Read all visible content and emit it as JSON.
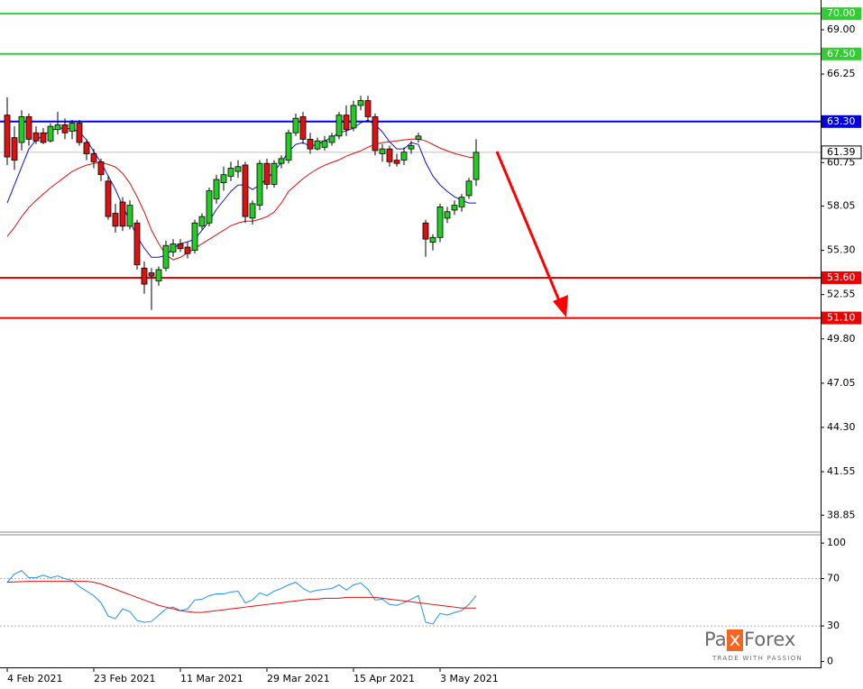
{
  "chart_data": [
    {
      "type": "candlestick",
      "categories": [
        "4 Feb 2021",
        null,
        null,
        null,
        null,
        null,
        null,
        null,
        null,
        null,
        null,
        null,
        "23 Feb 2021",
        null,
        null,
        null,
        null,
        null,
        null,
        null,
        null,
        null,
        null,
        null,
        "11 Mar 2021",
        null,
        null,
        null,
        null,
        null,
        null,
        null,
        null,
        null,
        null,
        null,
        "29 Mar 2021",
        null,
        null,
        null,
        null,
        null,
        null,
        null,
        null,
        null,
        null,
        null,
        "15 Apr 2021",
        null,
        null,
        null,
        null,
        null,
        null,
        null,
        null,
        null,
        null,
        null,
        "3 May 2021",
        null,
        null,
        null,
        null,
        null
      ],
      "open": [
        63.7,
        62.3,
        62.0,
        63.6,
        62.6,
        62.6,
        62.1,
        62.8,
        63.1,
        62.7,
        63.2,
        62.0,
        61.3,
        60.8,
        59.6,
        57.6,
        58.3,
        56.8,
        57.0,
        54.2,
        53.9,
        53.4,
        54.2,
        55.2,
        55.7,
        55.5,
        55.3,
        56.8,
        57.0,
        58.5,
        59.5,
        59.9,
        60.2,
        60.6,
        57.3,
        58.1,
        60.7,
        59.4,
        60.7,
        60.9,
        62.6,
        63.6,
        62.2,
        61.6,
        61.7,
        62.0,
        62.4,
        63.7,
        62.9,
        64.3,
        64.6,
        63.6,
        61.3,
        61.6,
        60.9,
        60.9,
        61.6,
        62.2,
        57.0,
        55.8,
        56.1,
        57.3,
        57.8,
        58.0,
        58.7,
        59.7
      ],
      "high": [
        64.8,
        63.0,
        64.0,
        63.8,
        63.0,
        62.9,
        63.2,
        63.9,
        63.5,
        63.4,
        63.4,
        62.2,
        61.6,
        61.0,
        59.9,
        58.2,
        58.6,
        58.4,
        57.2,
        54.6,
        54.2,
        54.3,
        55.9,
        56.0,
        56.0,
        55.8,
        57.2,
        57.6,
        59.2,
        60.0,
        60.5,
        60.8,
        60.9,
        60.8,
        58.4,
        60.9,
        61.0,
        60.9,
        61.2,
        62.8,
        63.8,
        63.9,
        62.6,
        62.3,
        62.4,
        62.6,
        63.9,
        64.3,
        64.6,
        64.9,
        64.9,
        63.8,
        61.9,
        61.8,
        61.3,
        61.7,
        62.1,
        62.6,
        57.2,
        56.3,
        58.2,
        58.0,
        58.4,
        58.8,
        59.8,
        62.2
      ],
      "low": [
        60.6,
        60.3,
        61.5,
        61.8,
        61.9,
        61.9,
        62.0,
        62.5,
        62.2,
        62.2,
        61.8,
        60.9,
        60.4,
        59.6,
        57.2,
        56.4,
        56.5,
        56.6,
        54.1,
        52.6,
        51.6,
        53.1,
        54.0,
        54.9,
        55.2,
        54.8,
        55.1,
        56.6,
        56.8,
        58.2,
        59.0,
        59.6,
        59.8,
        57.0,
        56.9,
        57.8,
        59.1,
        59.2,
        60.4,
        60.7,
        62.4,
        61.9,
        61.3,
        61.5,
        61.5,
        61.8,
        62.2,
        62.4,
        62.7,
        64.0,
        63.3,
        61.2,
        60.8,
        60.5,
        60.5,
        60.6,
        61.3,
        62.0,
        54.9,
        55.3,
        55.8,
        57.0,
        57.5,
        57.7,
        58.5,
        59.3
      ],
      "close": [
        61.1,
        60.9,
        63.6,
        62.2,
        62.1,
        62.0,
        63.0,
        63.1,
        62.6,
        63.2,
        62.0,
        61.3,
        60.8,
        60.0,
        57.4,
        56.8,
        56.8,
        58.1,
        54.4,
        53.2,
        53.7,
        54.1,
        55.6,
        55.7,
        55.4,
        55.1,
        57.0,
        57.4,
        59.0,
        59.7,
        60.0,
        60.4,
        60.5,
        57.4,
        58.2,
        60.7,
        59.4,
        60.7,
        61.0,
        62.6,
        63.5,
        62.2,
        61.6,
        62.1,
        62.1,
        62.4,
        63.7,
        62.8,
        64.3,
        64.6,
        63.6,
        61.5,
        61.6,
        60.8,
        60.7,
        61.4,
        61.8,
        62.4,
        56.0,
        56.1,
        58.0,
        57.7,
        58.1,
        58.6,
        59.6,
        61.39
      ],
      "up_color": "#22cc22",
      "down_color": "#dd1111",
      "lines": [
        {
          "color": "#1111cc",
          "values": [
            58.24,
            59.36,
            60.48,
            61.6,
            62.16,
            62.44,
            62.72,
            62.89,
            62.89,
            62.83,
            62.66,
            62.16,
            61.43,
            60.76,
            59.92,
            59.08,
            58.07,
            57.11,
            56.16,
            55.43,
            54.87,
            54.87,
            54.99,
            55.43,
            55.71,
            55.83,
            55.99,
            56.55,
            57.11,
            57.84,
            58.4,
            58.96,
            59.36,
            59.36,
            59.08,
            59.36,
            59.75,
            60.2,
            60.76,
            61.43,
            61.88,
            61.99,
            61.76,
            61.88,
            62.1,
            62.32,
            62.61,
            62.72,
            62.89,
            63.22,
            63.39,
            63.11,
            62.66,
            62.04,
            61.6,
            61.6,
            61.99,
            61.88,
            60.76,
            59.92,
            59.36,
            58.96,
            58.63,
            58.4,
            58.24,
            58.24
          ]
        },
        {
          "color": "#dd1111",
          "values": [
            56.16,
            56.72,
            57.39,
            57.96,
            58.4,
            58.8,
            59.19,
            59.52,
            59.86,
            60.2,
            60.42,
            60.59,
            60.7,
            60.76,
            60.64,
            60.48,
            60.08,
            59.47,
            58.63,
            57.68,
            56.55,
            55.71,
            55.04,
            54.71,
            54.87,
            55.15,
            55.43,
            55.71,
            55.99,
            56.27,
            56.55,
            56.83,
            57.0,
            57.11,
            57.11,
            57.23,
            57.39,
            57.68,
            58.24,
            58.96,
            59.36,
            59.75,
            60.08,
            60.36,
            60.59,
            60.76,
            60.92,
            61.15,
            61.32,
            61.48,
            61.71,
            61.88,
            61.99,
            62.04,
            62.1,
            62.16,
            62.21,
            62.21,
            62.1,
            61.88,
            61.65,
            61.48,
            61.32,
            61.2,
            61.09,
            61.04
          ]
        }
      ],
      "ylim": [
        37.8,
        70.85
      ],
      "yticks": [
        {
          "value": 69.0,
          "label": "69.00"
        },
        {
          "value": 66.25,
          "label": "66.25"
        },
        {
          "value": 60.75,
          "label": "60.75"
        },
        {
          "value": 58.05,
          "label": "58.05"
        },
        {
          "value": 55.3,
          "label": "55.30"
        },
        {
          "value": 52.55,
          "label": "52.55"
        },
        {
          "value": 49.8,
          "label": "49.80"
        },
        {
          "value": 47.05,
          "label": "47.05"
        },
        {
          "value": 44.3,
          "label": "44.30"
        },
        {
          "value": 41.55,
          "label": "41.55"
        },
        {
          "value": 38.85,
          "label": "38.85"
        }
      ],
      "levels": [
        {
          "value": 70,
          "label": "70.00",
          "color": "#33cc33"
        },
        {
          "value": 67.5,
          "label": "67.50",
          "color": "#33cc33"
        },
        {
          "value": 63.3,
          "label": "63.30",
          "color": "#0000dd"
        },
        {
          "value": 53.6,
          "label": "53.60",
          "color": "#ee0000"
        },
        {
          "value": 51.1,
          "label": "51.10",
          "color": "#ee0000"
        }
      ],
      "current_price": {
        "value": 61.39,
        "label": "61.39"
      }
    },
    {
      "type": "line",
      "lines": [
        {
          "color": "#1e90ff",
          "values": [
            66.9,
            73.7,
            76.7,
            70.7,
            70.7,
            72.9,
            70.7,
            72.2,
            69.9,
            68.4,
            63.2,
            59.4,
            55.6,
            49.6,
            38.3,
            36.1,
            44.4,
            42.1,
            34.6,
            33.1,
            33.8,
            39.1,
            44.4,
            45.9,
            42.9,
            44.4,
            51.9,
            52.6,
            55.6,
            57.1,
            57.1,
            58.6,
            59.4,
            49.6,
            51.9,
            57.9,
            55.6,
            59.4,
            61.7,
            64.7,
            66.9,
            61.7,
            58.6,
            60.2,
            60.9,
            61.7,
            64.7,
            60.2,
            64.7,
            66.2,
            60.9,
            51.9,
            52.6,
            48.1,
            47.4,
            49.6,
            52.6,
            55.6,
            33.1,
            31.6,
            40.6,
            39.1,
            41.4,
            42.9,
            48.1,
            55.6
          ]
        },
        {
          "color": "#dd1111",
          "values": [
            66.9,
            67.2,
            67.4,
            67.7,
            67.7,
            67.7,
            67.7,
            67.7,
            67.7,
            67.7,
            67.7,
            67.7,
            66.9,
            65.4,
            63.2,
            61.0,
            58.6,
            56.4,
            54.1,
            51.9,
            49.6,
            47.4,
            45.9,
            44.4,
            42.9,
            42.1,
            41.4,
            41.4,
            42.1,
            42.9,
            43.6,
            44.4,
            45.1,
            45.9,
            46.6,
            47.4,
            48.1,
            48.9,
            49.6,
            50.4,
            51.1,
            51.9,
            52.6,
            52.6,
            53.4,
            53.4,
            53.4,
            54.1,
            54.1,
            54.1,
            54.1,
            54.1,
            53.4,
            52.6,
            51.9,
            51.1,
            50.4,
            49.6,
            48.9,
            48.1,
            47.4,
            46.6,
            45.9,
            45.1,
            45.1,
            45.1
          ]
        }
      ],
      "ylim": [
        -5,
        107
      ],
      "yticks": [
        100,
        70,
        30,
        0
      ],
      "levels": [
        70,
        30
      ]
    }
  ],
  "logo": {
    "parts": [
      "Pa",
      "x",
      "Forex"
    ],
    "tagline": "TRADE WITH PASSION"
  }
}
